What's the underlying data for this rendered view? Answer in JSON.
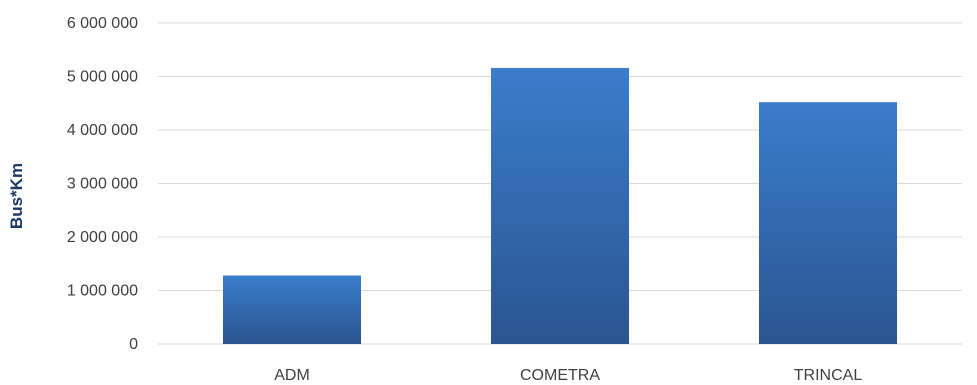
{
  "chart_data": {
    "type": "bar",
    "title": "",
    "xlabel": "",
    "ylabel": "Bus*Km",
    "categories": [
      "ADM",
      "COMETRA",
      "TRINCAL"
    ],
    "values": [
      1280000,
      5160000,
      4520000
    ],
    "ylim": [
      0,
      6000000
    ],
    "yticks": [
      0,
      1000000,
      2000000,
      3000000,
      4000000,
      5000000,
      6000000
    ],
    "ytick_labels": [
      "0",
      "1 000 000",
      "2 000 000",
      "3 000 000",
      "4 000 000",
      "5 000 000",
      "6 000 000"
    ],
    "grid": true,
    "legend": "none",
    "colors": {
      "bar_top": "#3a7dcc",
      "bar_bottom": "#2a5590",
      "grid": "#d9d9d9",
      "text": "#404040",
      "ylabel": "#1f3864"
    }
  }
}
